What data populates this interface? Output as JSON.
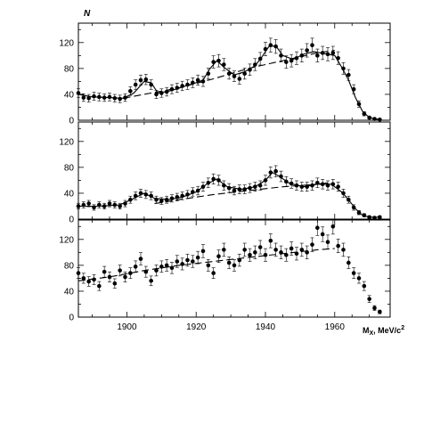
{
  "chart_data": [
    {
      "type": "scatter",
      "ylabel": "N",
      "xlim": [
        1886,
        1976
      ],
      "ylim": [
        0,
        150
      ],
      "yticks": [
        0,
        40,
        80,
        120
      ],
      "x": [
        1886,
        1887.5,
        1889,
        1890.5,
        1892,
        1893.5,
        1895,
        1896.5,
        1898,
        1899.5,
        1901,
        1902.5,
        1904,
        1905.5,
        1907,
        1908.5,
        1910,
        1911.5,
        1913,
        1914.5,
        1916,
        1917.5,
        1919,
        1920.5,
        1922,
        1923.5,
        1925,
        1926.5,
        1928,
        1929.5,
        1931,
        1932.5,
        1934,
        1935.5,
        1937,
        1938.5,
        1940,
        1941.5,
        1943,
        1944.5,
        1946,
        1947.5,
        1949,
        1950.5,
        1952,
        1953.5,
        1955,
        1956.5,
        1958,
        1959.5,
        1961,
        1962.5,
        1964,
        1965.5,
        1967,
        1968.5,
        1970,
        1971.5,
        1973
      ],
      "y": [
        42,
        35,
        34,
        37,
        36,
        35,
        36,
        34,
        33,
        35,
        45,
        55,
        62,
        63,
        55,
        40,
        42,
        44,
        48,
        50,
        53,
        55,
        58,
        62,
        60,
        72,
        90,
        92,
        86,
        72,
        68,
        64,
        72,
        78,
        86,
        95,
        110,
        116,
        114,
        100,
        90,
        92,
        96,
        100,
        108,
        116,
        100,
        104,
        102,
        104,
        96,
        80,
        70,
        48,
        25,
        10,
        4,
        2,
        1
      ],
      "fit": [
        [
          1886,
          40
        ],
        [
          1890,
          36
        ],
        [
          1895,
          35
        ],
        [
          1899,
          34
        ],
        [
          1902,
          42
        ],
        [
          1905,
          60
        ],
        [
          1907,
          58
        ],
        [
          1909,
          42
        ],
        [
          1913,
          46
        ],
        [
          1917,
          53
        ],
        [
          1920,
          58
        ],
        [
          1922,
          62
        ],
        [
          1924,
          80
        ],
        [
          1926,
          92
        ],
        [
          1928,
          82
        ],
        [
          1931,
          70
        ],
        [
          1934,
          75
        ],
        [
          1937,
          84
        ],
        [
          1939,
          98
        ],
        [
          1941,
          114
        ],
        [
          1943,
          115
        ],
        [
          1945,
          100
        ],
        [
          1948,
          94
        ],
        [
          1951,
          102
        ],
        [
          1954,
          106
        ],
        [
          1957,
          103
        ],
        [
          1960,
          100
        ],
        [
          1962,
          82
        ],
        [
          1964,
          62
        ],
        [
          1966,
          35
        ],
        [
          1968,
          14
        ],
        [
          1970,
          4
        ],
        [
          1973,
          1
        ]
      ],
      "background": [
        [
          1899,
          34
        ],
        [
          1905,
          40
        ],
        [
          1915,
          50
        ],
        [
          1925,
          64
        ],
        [
          1935,
          80
        ],
        [
          1945,
          92
        ],
        [
          1955,
          104
        ],
        [
          1960,
          108
        ]
      ]
    },
    {
      "type": "scatter",
      "ylabel": "",
      "xlim": [
        1886,
        1976
      ],
      "ylim": [
        0,
        150
      ],
      "yticks": [
        0,
        40,
        80,
        120
      ],
      "x": [
        1886,
        1887.5,
        1889,
        1890.5,
        1892,
        1893.5,
        1895,
        1896.5,
        1898,
        1899.5,
        1901,
        1902.5,
        1904,
        1905.5,
        1907,
        1908.5,
        1910,
        1911.5,
        1913,
        1914.5,
        1916,
        1917.5,
        1919,
        1920.5,
        1922,
        1923.5,
        1925,
        1926.5,
        1928,
        1929.5,
        1931,
        1932.5,
        1934,
        1935.5,
        1937,
        1938.5,
        1940,
        1941.5,
        1943,
        1944.5,
        1946,
        1947.5,
        1949,
        1950.5,
        1952,
        1953.5,
        1955,
        1956.5,
        1958,
        1959.5,
        1961,
        1962.5,
        1964,
        1965.5,
        1967,
        1968.5,
        1970,
        1971.5,
        1973
      ],
      "y": [
        20,
        22,
        24,
        18,
        22,
        20,
        24,
        22,
        20,
        24,
        30,
        36,
        40,
        38,
        36,
        30,
        28,
        30,
        32,
        34,
        36,
        38,
        42,
        44,
        50,
        56,
        62,
        60,
        52,
        48,
        44,
        46,
        46,
        48,
        50,
        52,
        60,
        72,
        74,
        66,
        58,
        55,
        52,
        50,
        50,
        52,
        56,
        54,
        52,
        54,
        50,
        40,
        30,
        18,
        10,
        6,
        3,
        2,
        3
      ],
      "fit": [
        [
          1886,
          20
        ],
        [
          1892,
          20
        ],
        [
          1898,
          22
        ],
        [
          1902,
          32
        ],
        [
          1905,
          40
        ],
        [
          1908,
          32
        ],
        [
          1912,
          30
        ],
        [
          1916,
          34
        ],
        [
          1920,
          42
        ],
        [
          1923,
          54
        ],
        [
          1926,
          62
        ],
        [
          1929,
          50
        ],
        [
          1933,
          46
        ],
        [
          1937,
          50
        ],
        [
          1940,
          60
        ],
        [
          1942,
          72
        ],
        [
          1944,
          66
        ],
        [
          1947,
          55
        ],
        [
          1951,
          50
        ],
        [
          1955,
          54
        ],
        [
          1959,
          54
        ],
        [
          1962,
          42
        ],
        [
          1964,
          30
        ],
        [
          1966,
          16
        ],
        [
          1968,
          6
        ],
        [
          1970,
          3
        ],
        [
          1973,
          3
        ]
      ],
      "background": [
        [
          1908,
          24
        ],
        [
          1915,
          30
        ],
        [
          1925,
          38
        ],
        [
          1935,
          44
        ],
        [
          1945,
          50
        ],
        [
          1955,
          54
        ],
        [
          1958,
          56
        ]
      ]
    },
    {
      "type": "scatter",
      "ylabel": "",
      "xlabel": "M",
      "xlabel_sub": "X",
      "xlabel_rest": ", MeV/c",
      "xlabel_sup": "2",
      "xlim": [
        1886,
        1976
      ],
      "ylim": [
        0,
        150
      ],
      "yticks": [
        0,
        40,
        80,
        120
      ],
      "xticks": [
        1900,
        1920,
        1940,
        1960
      ],
      "x": [
        1886,
        1887.5,
        1889,
        1890.5,
        1892,
        1893.5,
        1895,
        1896.5,
        1898,
        1899.5,
        1901,
        1902.5,
        1904,
        1905.5,
        1907,
        1908.5,
        1910,
        1911.5,
        1913,
        1914.5,
        1916,
        1917.5,
        1919,
        1920.5,
        1922,
        1923.5,
        1925,
        1926.5,
        1928,
        1929.5,
        1931,
        1932.5,
        1934,
        1935.5,
        1937,
        1938.5,
        1940,
        1941.5,
        1943,
        1944.5,
        1946,
        1947.5,
        1949,
        1950.5,
        1952,
        1953.5,
        1955,
        1956.5,
        1958,
        1959.5,
        1961,
        1962.5,
        1964,
        1965.5,
        1967,
        1968.5,
        1970,
        1971.5,
        1973
      ],
      "y": [
        68,
        60,
        55,
        58,
        48,
        70,
        62,
        52,
        72,
        62,
        68,
        78,
        90,
        70,
        56,
        72,
        78,
        80,
        76,
        86,
        82,
        88,
        86,
        92,
        102,
        80,
        68,
        94,
        104,
        84,
        80,
        88,
        104,
        96,
        100,
        108,
        96,
        118,
        104,
        100,
        96,
        106,
        98,
        104,
        100,
        112,
        138,
        128,
        116,
        140,
        110,
        104,
        84,
        68,
        60,
        48,
        28,
        14,
        8
      ],
      "background": [
        [
          1886,
          56
        ],
        [
          1895,
          62
        ],
        [
          1905,
          72
        ],
        [
          1915,
          80
        ],
        [
          1925,
          86
        ],
        [
          1935,
          92
        ],
        [
          1945,
          98
        ],
        [
          1955,
          104
        ],
        [
          1960,
          106
        ]
      ]
    }
  ]
}
